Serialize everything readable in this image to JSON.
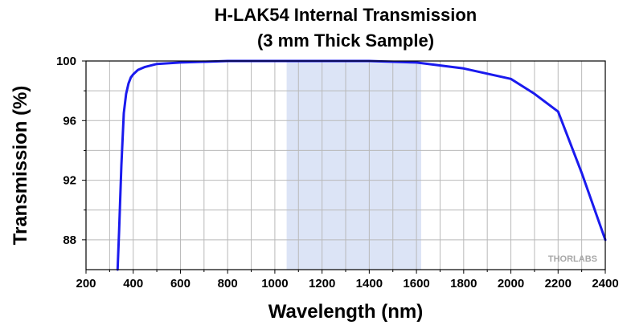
{
  "chart_data": {
    "type": "line",
    "title": "H-LAK54 Internal Transmission",
    "subtitle": "(3 mm Thick Sample)",
    "xlabel": "Wavelength (nm)",
    "ylabel": "Transmission (%)",
    "xlim": [
      200,
      2400
    ],
    "ylim": [
      86,
      100
    ],
    "xticks": [
      200,
      400,
      600,
      800,
      1000,
      1200,
      1400,
      1600,
      1800,
      2000,
      2200,
      2400
    ],
    "yticks": [
      88,
      92,
      96,
      100
    ],
    "grid": true,
    "highlight_band": {
      "x_start": 1050,
      "x_end": 1620,
      "color": "#dce4f6"
    },
    "series": [
      {
        "color": "#1a1aee",
        "x": [
          334,
          340,
          350,
          360,
          370,
          380,
          390,
          400,
          420,
          450,
          500,
          600,
          800,
          1000,
          1200,
          1400,
          1600,
          1800,
          2000,
          2100,
          2200,
          2300,
          2400
        ],
        "y": [
          86.0,
          88.5,
          93.0,
          96.5,
          97.8,
          98.5,
          98.9,
          99.1,
          99.4,
          99.6,
          99.8,
          99.9,
          100.0,
          100.0,
          100.0,
          100.0,
          99.9,
          99.5,
          98.8,
          97.8,
          96.6,
          92.5,
          88.0
        ]
      }
    ]
  },
  "watermark": "THORLABS"
}
